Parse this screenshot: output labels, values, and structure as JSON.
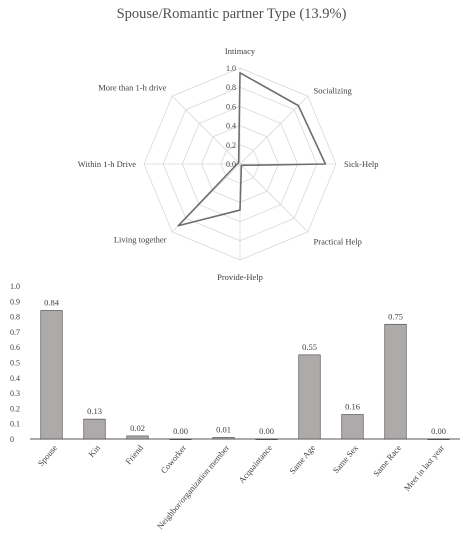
{
  "title": "Spouse/Romantic partner Type (13.9%)",
  "chart_data": [
    {
      "type": "radar",
      "categories": [
        "Intimacy",
        "Socializing",
        "Sick-Help",
        "Practical Help",
        "Provide-Help",
        "Living together",
        "Within 1-h Drive",
        "More than 1-h drive"
      ],
      "values": [
        0.95,
        0.86,
        0.89,
        0.02,
        0.48,
        0.91,
        0.03,
        0.02
      ],
      "ylim": [
        0,
        1.0
      ],
      "ticks": [
        "0.0",
        "0.2",
        "0.4",
        "0.6",
        "0.8",
        "1.0"
      ],
      "colors": {
        "line": "#6e6e6e",
        "grid": "#d9d9d9"
      }
    },
    {
      "type": "bar",
      "categories": [
        "Spouse",
        "Kin",
        "Friend",
        "Coworker",
        "Neighbor/organization member",
        "Acquaintance",
        "Same Age",
        "Same Sex",
        "Same Race",
        "Meet in last year"
      ],
      "values": [
        0.84,
        0.13,
        0.02,
        0.0,
        0.01,
        0.0,
        0.55,
        0.16,
        0.75,
        0.0
      ],
      "data_labels": [
        "0.84",
        "0.13",
        "0.02",
        "0.00",
        "0.01",
        "0.00",
        "0.55",
        "0.16",
        "0.75",
        "0.00"
      ],
      "ylim": [
        0,
        1.0
      ],
      "yticks": [
        "0",
        "0.1",
        "0.2",
        "0.3",
        "0.4",
        "0.5",
        "0.6",
        "0.7",
        "0.8",
        "0.9",
        "1.0"
      ],
      "grid": false,
      "colors": {
        "bar_fill": "#aeaaaa",
        "bar_stroke": "#404040"
      }
    }
  ]
}
